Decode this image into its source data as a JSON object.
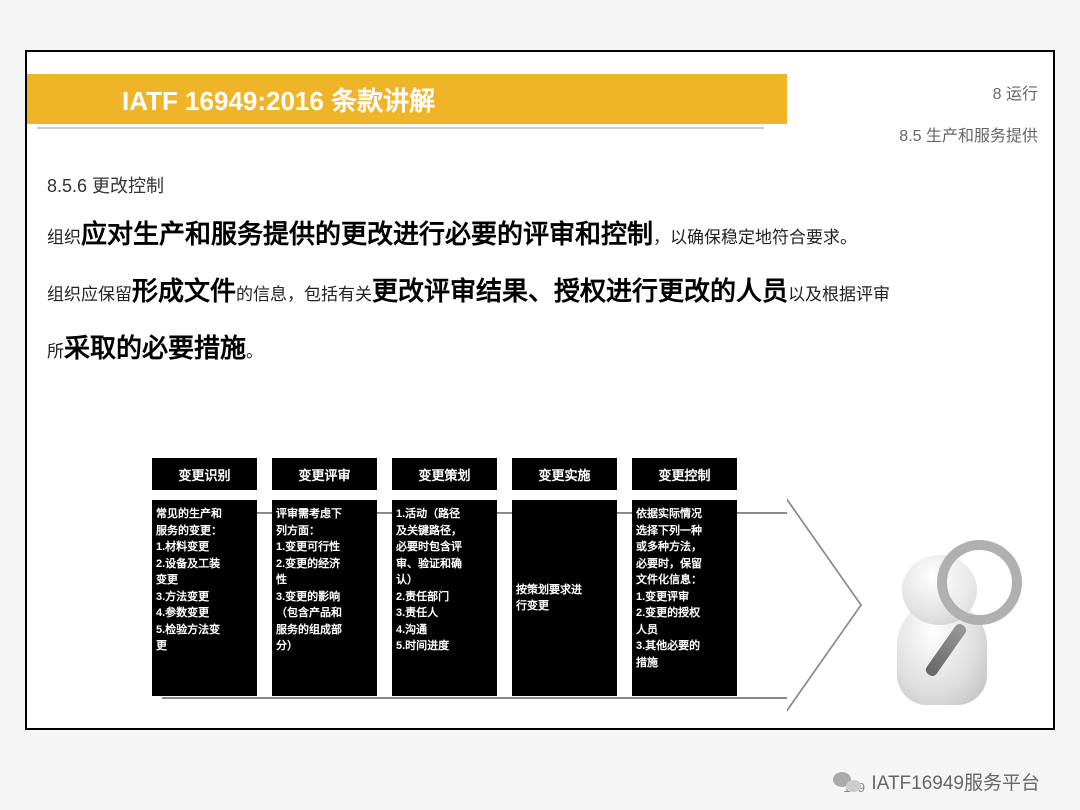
{
  "header": {
    "title": "IATF 16949:2016 条款讲解",
    "section_num": "8 运行",
    "subsection": "8.5 生产和服务提供",
    "title_bg": "#f0b429",
    "title_color": "#ffffff"
  },
  "content": {
    "clause_num": "8.5.6 更改控制",
    "line1_pre": "组织",
    "line1_em": "应对生产和服务提供的更改进行必要的评审和控制",
    "line1_post": "，以确保稳定地符合要求。",
    "line2_pre": "组织应保留",
    "line2_em1": "形成文件",
    "line2_mid": "的信息，包括有关",
    "line2_em2": "更改评审结果、授权进行更改的人员",
    "line2_post": "以及根据评审",
    "line3_pre": "所",
    "line3_em": "采取的必要措施",
    "line3_post": "。"
  },
  "flow": {
    "headers": [
      "变更识别",
      "变更评审",
      "变更策划",
      "变更实施",
      "变更控制"
    ],
    "bodies": [
      "常见的生产和\n服务的变更：\n1.材料变更\n2.设备及工装\n变更\n3.方法变更\n4.参数变更\n5.检验方法变\n更",
      "评审需考虑下\n列方面：\n1.变更可行性\n2.变更的经济\n性\n3.变更的影响\n（包含产品和\n服务的组成部\n分）",
      "1.活动（路径\n及关键路径，\n必要时包含评\n审、验证和确\n认）\n2.责任部门\n3.责任人\n4.沟通\n5.时间进度",
      "按策划要求进\n行变更",
      "依据实际情况\n选择下列一种\n或多种方法，\n必要时，保留\n文件化信息：\n1.变更评审\n2.变更的授权\n人员\n3.其他必要的\n措施"
    ],
    "box_bg": "#000000",
    "box_text": "#ffffff",
    "arrow_color": "#888888"
  },
  "footer": {
    "platform": "IATF16949服务平台",
    "page_num": "109"
  }
}
